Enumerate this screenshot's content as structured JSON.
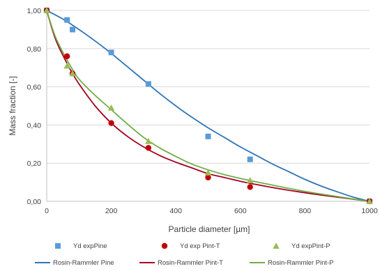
{
  "chart_data": {
    "type": "scatter",
    "xlabel": "Particle diameter [µm]",
    "ylabel": "Mass fraction [-]",
    "xlim": [
      0,
      1000
    ],
    "ylim": [
      0,
      1
    ],
    "x_ticks": [
      0,
      200,
      400,
      600,
      800,
      1000
    ],
    "y_ticks": [
      0,
      0.2,
      0.4,
      0.6,
      0.8,
      1.0
    ],
    "x_tick_labels": [
      "0",
      "200",
      "400",
      "600",
      "800",
      "1000"
    ],
    "y_tick_labels": [
      "0,00",
      "0,20",
      "0,40",
      "0,60",
      "0,80",
      "1,00"
    ],
    "grid": "horizontal",
    "legend_position": "bottom",
    "scatter_series": [
      {
        "name": "Yd expPine",
        "marker": "square",
        "color": "#5b9bd5",
        "x": [
          0,
          63,
          80,
          200,
          315,
          500,
          630,
          1000
        ],
        "y": [
          1.0,
          0.95,
          0.9,
          0.78,
          0.615,
          0.34,
          0.22,
          0.0
        ]
      },
      {
        "name": "Yd exp Pint-T",
        "marker": "circle",
        "color": "#c00000",
        "x": [
          0,
          63,
          80,
          200,
          315,
          500,
          630,
          1000
        ],
        "y": [
          1.0,
          0.76,
          0.67,
          0.41,
          0.28,
          0.125,
          0.075,
          0.0
        ]
      },
      {
        "name": "Yd expPint-P",
        "marker": "triangle",
        "color": "#9bbb59",
        "x": [
          0,
          63,
          80,
          200,
          315,
          500,
          630,
          1000
        ],
        "y": [
          1.0,
          0.71,
          0.67,
          0.49,
          0.315,
          0.15,
          0.11,
          0.0
        ]
      }
    ],
    "line_series": [
      {
        "name": "Rosin-Rammler Pine",
        "color": "#2e75b6",
        "x": [
          0,
          50,
          100,
          150,
          200,
          250,
          300,
          350,
          400,
          450,
          500,
          550,
          600,
          650,
          700,
          750,
          800,
          850,
          900,
          950,
          1000
        ],
        "y": [
          1.0,
          0.955,
          0.9,
          0.84,
          0.775,
          0.705,
          0.635,
          0.565,
          0.5,
          0.44,
          0.385,
          0.335,
          0.285,
          0.24,
          0.195,
          0.155,
          0.115,
          0.08,
          0.05,
          0.022,
          0.0
        ]
      },
      {
        "name": "Rosin-Rammler Pint-T",
        "color": "#a50021",
        "x": [
          0,
          25,
          50,
          75,
          100,
          150,
          200,
          250,
          300,
          350,
          400,
          450,
          500,
          550,
          600,
          650,
          700,
          750,
          800,
          850,
          900,
          950,
          1000
        ],
        "y": [
          1.0,
          0.86,
          0.765,
          0.685,
          0.615,
          0.5,
          0.41,
          0.34,
          0.285,
          0.24,
          0.205,
          0.175,
          0.145,
          0.125,
          0.105,
          0.088,
          0.072,
          0.058,
          0.045,
          0.033,
          0.022,
          0.011,
          0.0
        ]
      },
      {
        "name": "Rosin-Rammler Pint-P",
        "color": "#70ad47",
        "x": [
          0,
          25,
          50,
          75,
          100,
          150,
          200,
          250,
          300,
          350,
          400,
          450,
          500,
          550,
          600,
          650,
          700,
          750,
          800,
          850,
          900,
          950,
          1000
        ],
        "y": [
          1.0,
          0.87,
          0.78,
          0.705,
          0.64,
          0.555,
          0.48,
          0.405,
          0.335,
          0.28,
          0.235,
          0.195,
          0.165,
          0.14,
          0.12,
          0.102,
          0.085,
          0.068,
          0.052,
          0.038,
          0.025,
          0.012,
          0.0
        ]
      }
    ]
  }
}
